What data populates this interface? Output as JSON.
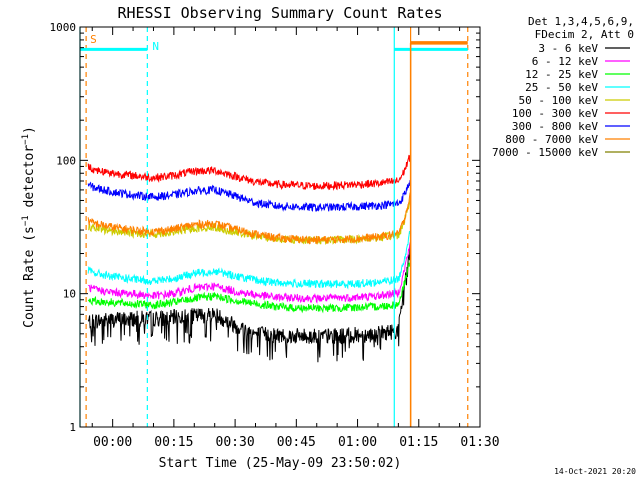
{
  "chart_data": {
    "type": "line",
    "title": "RHESSI Observing Summary Count Rates",
    "xlabel": "Start Time (25-May-09 23:50:02)",
    "ylabel": "Count Rate (s⁻¹ detector⁻¹)",
    "ylabel_main": "Count Rate (s",
    "ylabel_sup1": "−1",
    "ylabel_mid": " detector",
    "ylabel_sup2": "−1",
    "ylabel_end": ")",
    "yscale": "log",
    "ylim": [
      1,
      1000
    ],
    "xlim_minutes": [
      -8,
      90
    ],
    "x_ticks": [
      {
        "minutes": 0,
        "label": "00:00"
      },
      {
        "minutes": 15,
        "label": "00:15"
      },
      {
        "minutes": 30,
        "label": "00:30"
      },
      {
        "minutes": 45,
        "label": "00:45"
      },
      {
        "minutes": 60,
        "label": "01:00"
      },
      {
        "minutes": 75,
        "label": "01:15"
      },
      {
        "minutes": 90,
        "label": "01:30"
      }
    ],
    "y_ticks": [
      {
        "value": 1,
        "label": "1"
      },
      {
        "value": 10,
        "label": "10"
      },
      {
        "value": 100,
        "label": "100"
      },
      {
        "value": 1000,
        "label": "1000"
      }
    ],
    "legend_header": [
      "Det 1,3,4,5,6,9,",
      "FDecim 2, Att 0"
    ],
    "series": [
      {
        "name": "3 - 6 keV",
        "color": "#000000",
        "x": [
          -6,
          -5,
          0,
          5,
          10,
          15,
          20,
          25,
          30,
          35,
          40,
          45,
          50,
          55,
          60,
          65,
          70,
          71,
          72,
          73
        ],
        "y": [
          6.2,
          6.2,
          6.4,
          6.5,
          6.5,
          6.6,
          6.8,
          7.0,
          5.8,
          5.0,
          4.9,
          4.8,
          4.8,
          4.8,
          4.9,
          5.0,
          5.3,
          9,
          16,
          22
        ]
      },
      {
        "name": "6 - 12 keV",
        "color": "#ff00ff",
        "x": [
          -6,
          -5,
          0,
          5,
          10,
          15,
          20,
          25,
          30,
          35,
          40,
          45,
          50,
          55,
          60,
          65,
          70,
          71,
          72,
          73
        ],
        "y": [
          11.2,
          10.8,
          10.2,
          10.0,
          9.6,
          10.0,
          11.0,
          11.4,
          10.4,
          9.8,
          9.4,
          9.3,
          9.2,
          9.3,
          9.4,
          9.6,
          10.2,
          13,
          18,
          24
        ]
      },
      {
        "name": "12 - 25 keV",
        "color": "#00ff00",
        "x": [
          -6,
          -5,
          0,
          5,
          10,
          15,
          20,
          25,
          30,
          35,
          40,
          45,
          50,
          55,
          60,
          65,
          70,
          71,
          72,
          73
        ],
        "y": [
          9.0,
          8.8,
          8.6,
          8.4,
          8.2,
          8.6,
          9.2,
          9.6,
          8.9,
          8.4,
          8.0,
          7.8,
          7.8,
          7.8,
          7.9,
          8.0,
          8.3,
          10.5,
          14,
          18
        ]
      },
      {
        "name": "25 - 50 keV",
        "color": "#00ffff",
        "x": [
          -6,
          -5,
          0,
          5,
          10,
          15,
          20,
          25,
          30,
          35,
          40,
          45,
          50,
          55,
          60,
          65,
          70,
          71,
          72,
          73
        ],
        "y": [
          15.0,
          14.4,
          13.4,
          12.8,
          12.4,
          13.0,
          14.2,
          14.8,
          13.6,
          12.6,
          12.1,
          11.9,
          11.8,
          11.8,
          11.9,
          12.2,
          12.8,
          16,
          22,
          30
        ]
      },
      {
        "name": "50 - 100 keV",
        "color": "#cccc00",
        "x": [
          -6,
          -5,
          0,
          5,
          10,
          15,
          20,
          25,
          30,
          35,
          40,
          45,
          50,
          55,
          60,
          65,
          70,
          71,
          72,
          73
        ],
        "y": [
          32,
          31,
          29.5,
          28.5,
          28,
          29,
          31,
          31.5,
          29,
          27,
          25.8,
          25.4,
          25.2,
          25.4,
          25.6,
          26.2,
          27.5,
          32,
          40,
          52
        ]
      },
      {
        "name": "100 - 300 keV",
        "color": "#ff0000",
        "x": [
          -6,
          -5,
          0,
          5,
          10,
          15,
          20,
          25,
          30,
          35,
          40,
          45,
          50,
          55,
          60,
          65,
          70,
          71,
          72,
          73
        ],
        "y": [
          90,
          86,
          80,
          77,
          74,
          77,
          83,
          84,
          76,
          69,
          66,
          65,
          64,
          65,
          66,
          67,
          70,
          78,
          92,
          110
        ]
      },
      {
        "name": "300 - 800 keV",
        "color": "#0000ff",
        "x": [
          -6,
          -5,
          0,
          5,
          10,
          15,
          20,
          25,
          30,
          35,
          40,
          45,
          50,
          55,
          60,
          65,
          70,
          71,
          72,
          73
        ],
        "y": [
          66,
          63,
          58,
          55,
          53,
          55,
          59,
          60,
          54,
          48,
          45.5,
          44.8,
          44.3,
          44.5,
          45,
          45.8,
          47.5,
          52,
          60,
          72
        ]
      },
      {
        "name": "800 - 7000 keV",
        "color": "#ff8000",
        "x": [
          -6,
          -5,
          0,
          5,
          10,
          15,
          20,
          25,
          30,
          35,
          40,
          45,
          50,
          55,
          60,
          65,
          70,
          71,
          72,
          73
        ],
        "y": [
          35,
          34,
          31.5,
          30,
          29.2,
          30.5,
          33,
          33.5,
          30.5,
          28,
          26.2,
          25.6,
          25.3,
          25.5,
          25.9,
          26.6,
          28,
          33,
          42,
          56
        ]
      },
      {
        "name": "7000 - 15000 keV",
        "color": "#808000",
        "x": [],
        "y": []
      }
    ],
    "attenuator_level": {
      "color": "#ff8000",
      "value": 760,
      "x_start_minutes": 73,
      "x_end_minutes": 87
    },
    "attenuator_label": "S",
    "night_label": "N",
    "night_bars": [
      {
        "x_start_minutes": -8,
        "x_end_minutes": 8.5,
        "value": 680
      },
      {
        "x_start_minutes": 69,
        "x_end_minutes": 87,
        "value": 680
      }
    ],
    "vertical_lines": [
      {
        "minutes": -8,
        "color": "#00ffff",
        "style": "solid"
      },
      {
        "minutes": -6.5,
        "color": "#ff8000",
        "style": "dashed"
      },
      {
        "minutes": 8.5,
        "color": "#00ffff",
        "style": "dashed"
      },
      {
        "minutes": 69,
        "color": "#00ffff",
        "style": "solid"
      },
      {
        "minutes": 73,
        "color": "#ff8000",
        "style": "solid"
      },
      {
        "minutes": 87,
        "color": "#ff8000",
        "style": "dashed"
      }
    ],
    "annotations": {
      "date_stamp": "14-Oct-2021 20:20"
    }
  }
}
